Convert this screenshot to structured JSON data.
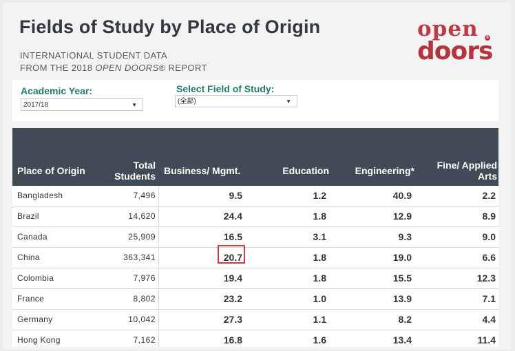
{
  "header": {
    "title": "Fields of Study by Place of Origin",
    "subtitle_line1": "INTERNATIONAL STUDENT DATA",
    "subtitle_line2_prefix": "FROM THE 2018 ",
    "subtitle_line2_italic": "OPEN DOORS",
    "subtitle_line2_suffix": "® REPORT",
    "logo_top": "open",
    "logo_bottom": "doors",
    "logo_reg": "®"
  },
  "filters": {
    "academic_year_label": "Academic Year:",
    "academic_year_value": "2017/18",
    "field_label": "Select Field of Study:",
    "field_value": "(全部)",
    "dropdown_arrow": "▼"
  },
  "table": {
    "columns": {
      "origin": "Place of Origin",
      "total_line1": "Total",
      "total_line2": "Students",
      "business": "Business/ Mgmt.",
      "education": "Education",
      "engineering": "Engineering*",
      "arts_line1": "Fine/ Applied",
      "arts_line2": "Arts"
    },
    "rows": [
      {
        "origin": "Bangladesh",
        "total": "7,496",
        "business": "9.5",
        "education": "1.2",
        "engineering": "40.9",
        "arts": "2.2"
      },
      {
        "origin": "Brazil",
        "total": "14,620",
        "business": "24.4",
        "education": "1.8",
        "engineering": "12.9",
        "arts": "8.9"
      },
      {
        "origin": "Canada",
        "total": "25,909",
        "business": "16.5",
        "education": "3.1",
        "engineering": "9.3",
        "arts": "9.0"
      },
      {
        "origin": "China",
        "total": "363,341",
        "business": "20.7",
        "education": "1.8",
        "engineering": "19.0",
        "arts": "6.6"
      },
      {
        "origin": "Colombia",
        "total": "7,976",
        "business": "19.4",
        "education": "1.8",
        "engineering": "15.5",
        "arts": "12.3"
      },
      {
        "origin": "France",
        "total": "8,802",
        "business": "23.2",
        "education": "1.0",
        "engineering": "13.9",
        "arts": "7.1"
      },
      {
        "origin": "Germany",
        "total": "10,042",
        "business": "27.3",
        "education": "1.1",
        "engineering": "8.2",
        "arts": "4.4"
      },
      {
        "origin": "Hong Kong",
        "total": "7,162",
        "business": "16.8",
        "education": "1.6",
        "engineering": "13.4",
        "arts": "11.4"
      }
    ]
  },
  "colors": {
    "header_bg": "#414b57",
    "accent_teal": "#1f7a6b",
    "logo_red": "#b7333d",
    "highlight_red": "#d9373d"
  }
}
